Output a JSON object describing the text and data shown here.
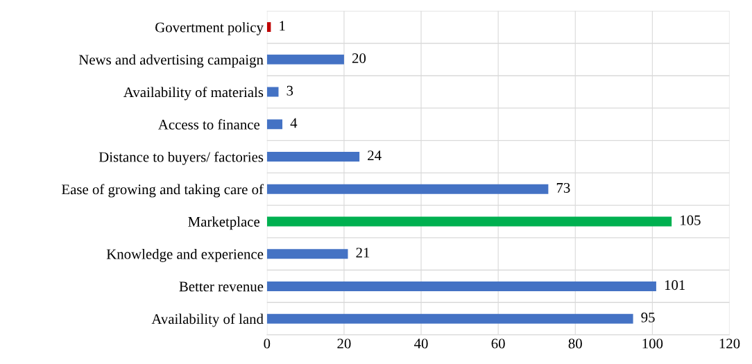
{
  "chart_data": {
    "type": "bar",
    "orientation": "horizontal",
    "categories": [
      "Govertment policy",
      "News and advertising campaign",
      "Availability of materials",
      "Access to finance ",
      "Distance to buyers/ factories",
      "Ease of growing and taking care of",
      "Marketplace ",
      "Knowledge and experience",
      "Better revenue",
      "Availability of land"
    ],
    "values": [
      1,
      20,
      3,
      4,
      24,
      73,
      105,
      21,
      101,
      95
    ],
    "colors": [
      "#c00000",
      "#4472c4",
      "#4472c4",
      "#4472c4",
      "#4472c4",
      "#4472c4",
      "#00b050",
      "#4472c4",
      "#4472c4",
      "#4472c4"
    ],
    "xlim": [
      0,
      120
    ],
    "xticks": [
      0,
      20,
      40,
      60,
      80,
      100,
      120
    ],
    "grid": "x",
    "data_labels": true
  }
}
